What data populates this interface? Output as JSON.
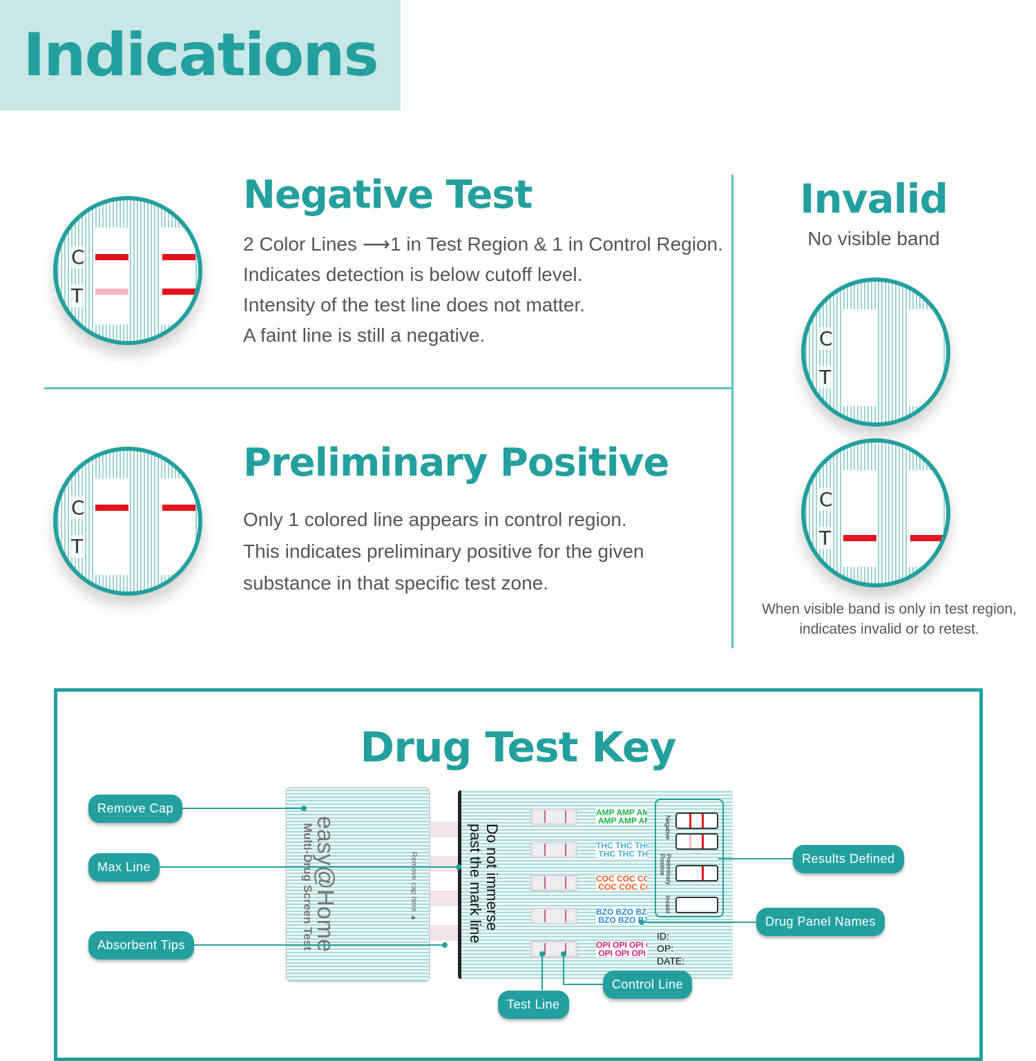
{
  "header": {
    "title": "Indications"
  },
  "negative": {
    "title": "Negative Test",
    "lines": [
      "2 Color Lines ⟶1 in Test Region & 1 in Control Region.",
      "Indicates detection is below cutoff level.",
      "Intensity of the test line does not matter.",
      "A faint line is still a negative."
    ]
  },
  "positive": {
    "title": "Preliminary Positive",
    "lines": [
      "Only 1 colored line appears in control region.",
      "This indicates preliminary positive for the given",
      "substance in that specific test zone."
    ]
  },
  "invalid": {
    "title": "Invalid",
    "subtitle": "No visible band",
    "caption": [
      "When visible band is only in test region,",
      "indicates invalid or to retest."
    ]
  },
  "strip_labels": {
    "c": "C",
    "t": "T"
  },
  "key": {
    "title": "Drug Test Key",
    "callouts": {
      "remove_cap": "Remove Cap",
      "max_line": "Max Line",
      "absorbent_tips": "Absorbent Tips",
      "results_defined": "Results Defined",
      "drug_panel_names": "Drug Panel Names",
      "control_line": "Control Line",
      "test_line": "Test Line"
    },
    "device": {
      "brand": "easy@Home",
      "product": "Multi-Drug Screen Test",
      "cap_note": "Remove cap here ▲",
      "warning": "Do not immerse past the mark line",
      "drugs": [
        "AMP",
        "THC",
        "COC",
        "BZO",
        "OPI"
      ],
      "drug_colors": [
        "#22b04a",
        "#4ab0d8",
        "#f05a1e",
        "#2a8ad0",
        "#d0207a"
      ],
      "legend": [
        "Negative",
        "Preliminary Positive",
        "Invalid"
      ],
      "fields": [
        "ID:",
        "OP:",
        "DATE:"
      ]
    }
  },
  "colors": {
    "accent": "#23a09e",
    "band": "#e3141e"
  }
}
